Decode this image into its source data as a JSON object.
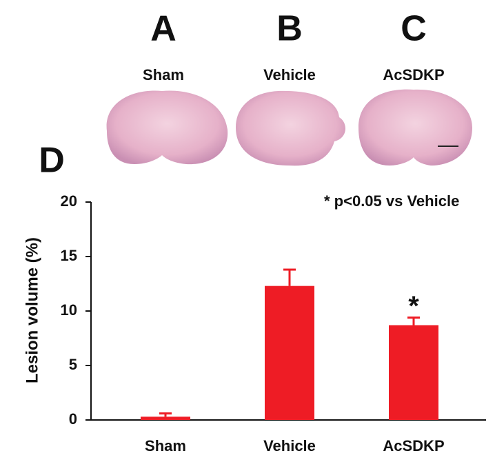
{
  "panels": [
    {
      "letter": "A",
      "label": "Sham"
    },
    {
      "letter": "B",
      "label": "Vehicle"
    },
    {
      "letter": "C",
      "label": "AcSDKP"
    }
  ],
  "chart_data": {
    "type": "bar",
    "panel_letter": "D",
    "annotation": "* p<0.05 vs Vehicle",
    "ylabel": "Lesion volume (%)",
    "categories": [
      "Sham",
      "Vehicle",
      "AcSDKP"
    ],
    "values": [
      0.3,
      12.3,
      8.7
    ],
    "errors": [
      0.3,
      1.5,
      0.7
    ],
    "significance_labels": [
      null,
      null,
      "*"
    ],
    "color": "#ee1c25",
    "ylim": [
      0,
      20
    ],
    "yticks": [
      0,
      5,
      10,
      15,
      20
    ],
    "grid": false
  }
}
